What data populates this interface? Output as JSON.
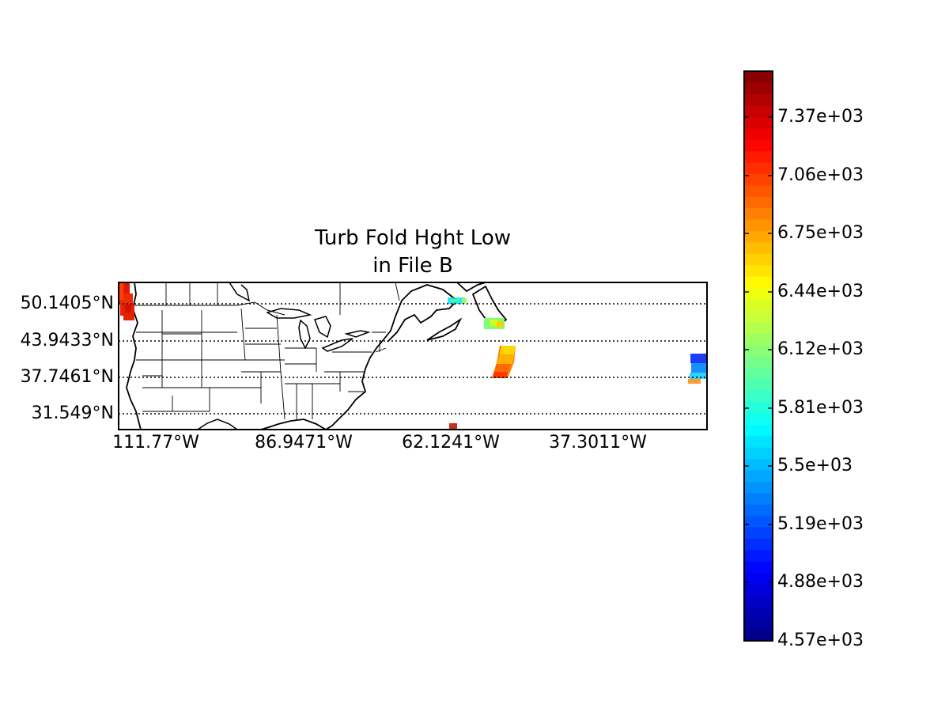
{
  "chart_data": {
    "type": "heatmap",
    "title_lines": [
      "Turb Fold Hght Low",
      "in File B"
    ],
    "lat_ticks": [
      "50.1405°N",
      "43.9433°N",
      "37.7461°N",
      "31.549°N"
    ],
    "lon_ticks": [
      "111.77°W",
      "86.9471°W",
      "62.1241°W",
      "37.3011°W"
    ],
    "colorbar": {
      "colormap": "jet",
      "vmin": 4570,
      "vmax": 7680,
      "tick_labels": [
        "4.57e+03",
        "4.88e+03",
        "5.19e+03",
        "5.5e+03",
        "5.81e+03",
        "6.12e+03",
        "6.44e+03",
        "6.75e+03",
        "7.06e+03",
        "7.37e+03"
      ]
    },
    "grid": "dotted parallels at labeled latitudes",
    "data_regions": [
      {
        "location": "Pacific coast near 125°W, 47–54°N",
        "value_approx": 7300
      },
      {
        "location": "Gulf of St. Lawrence near 60°W, 50°N",
        "value_approx": 6000
      },
      {
        "location": "South of Newfoundland near 56°W, 47°N",
        "value_approx": 6300
      },
      {
        "location": "Atlantic swath near 58°W, 38–42°N",
        "value_approx": 6900
      },
      {
        "location": "Atlantic near 61°W, 29°N",
        "value_approx": 7300
      },
      {
        "location": "Eastern Atlantic near 26°W, 37–41°N",
        "value_approx": 5300
      }
    ]
  }
}
